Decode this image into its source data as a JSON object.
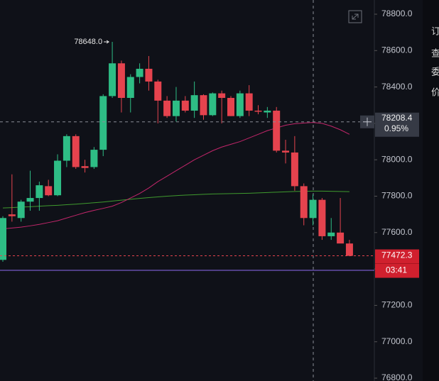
{
  "chart_data": {
    "type": "candlestick",
    "up_color": "#2ebd85",
    "down_color": "#e5434e",
    "open": [
      77450,
      77700,
      77680,
      77770,
      77790,
      77855,
      77805,
      77995,
      78130,
      77965,
      77960,
      78055,
      78350,
      78530,
      78340,
      78455,
      78500,
      78430,
      78325,
      78240,
      78325,
      78270,
      78355,
      78245,
      78365,
      78340,
      78240,
      78365,
      78270,
      78260,
      78270,
      78050,
      78040,
      77855,
      77680,
      77780,
      77580,
      77600,
      77540
    ],
    "high": [
      77690,
      77920,
      77780,
      77940,
      77880,
      77890,
      78030,
      78140,
      78140,
      78000,
      78070,
      78360,
      78648,
      78545,
      78470,
      78530,
      78570,
      78440,
      78350,
      78400,
      78350,
      78430,
      78360,
      78370,
      78380,
      78350,
      78380,
      78410,
      78300,
      78290,
      78290,
      78110,
      78130,
      77870,
      77810,
      77790,
      77680,
      77790,
      77560
    ],
    "low": [
      77440,
      77660,
      77660,
      77720,
      77720,
      77800,
      77800,
      77960,
      77950,
      77930,
      77950,
      78020,
      78340,
      78260,
      78260,
      78420,
      78380,
      78200,
      78230,
      78210,
      78260,
      78230,
      78220,
      78240,
      78200,
      78240,
      78230,
      78240,
      78250,
      78230,
      78040,
      77980,
      77830,
      77640,
      77640,
      77560,
      77560,
      77560,
      77470
    ],
    "close": [
      77680,
      77690,
      77770,
      77790,
      77860,
      77805,
      77995,
      78130,
      77960,
      77955,
      78055,
      78350,
      78530,
      78340,
      78455,
      78500,
      78430,
      78325,
      78240,
      78325,
      78270,
      78355,
      78245,
      78365,
      78340,
      78240,
      78365,
      78270,
      78265,
      78270,
      78050,
      78040,
      77855,
      77680,
      77780,
      77580,
      77600,
      77540,
      77472.3
    ],
    "ma_lines": [
      {
        "color": "#3f9a2e",
        "values": [
          77735,
          77737,
          77740,
          77742,
          77745,
          77748,
          77750,
          77753,
          77756,
          77760,
          77764,
          77768,
          77773,
          77778,
          77783,
          77788,
          77792,
          77796,
          77800,
          77803,
          77806,
          77808,
          77810,
          77812,
          77813,
          77814,
          77815,
          77816,
          77818,
          77820,
          77822,
          77824,
          77826,
          77827,
          77828,
          77828,
          77827,
          77826,
          77825
        ]
      },
      {
        "color": "#c2266a",
        "values": [
          77620,
          77625,
          77630,
          77637,
          77645,
          77655,
          77665,
          77680,
          77695,
          77710,
          77722,
          77733,
          77745,
          77765,
          77790,
          77815,
          77845,
          77880,
          77910,
          77940,
          77970,
          78000,
          78025,
          78050,
          78070,
          78085,
          78100,
          78120,
          78140,
          78160,
          78175,
          78190,
          78198,
          78202,
          78205,
          78200,
          78185,
          78165,
          78140
        ]
      }
    ],
    "ylim": [
      76800,
      78800
    ],
    "yticks": [
      {
        "value": 78800,
        "label": "78800.0"
      },
      {
        "value": 78600,
        "label": "78600.0"
      },
      {
        "value": 78400,
        "label": "78400.0"
      },
      {
        "value": 78200,
        "label": "78200.0"
      },
      {
        "value": 78000,
        "label": "78000.0"
      },
      {
        "value": 77800,
        "label": "77800.0"
      },
      {
        "value": 77600,
        "label": "77600.0"
      },
      {
        "value": 77400,
        "label": "77400.0"
      },
      {
        "value": 77200,
        "label": "77200.0"
      },
      {
        "value": 77000,
        "label": "77000.0"
      },
      {
        "value": 76800,
        "label": "76800.0"
      }
    ],
    "high_annotation": {
      "value": 78648,
      "label": "78648.0"
    },
    "crosshair_price": 78208.4,
    "crosshair_change": "0.95%",
    "last_price": 77472.3,
    "countdown": "03:41"
  },
  "side_panel": [
    "订",
    "查",
    "委",
    "价"
  ]
}
